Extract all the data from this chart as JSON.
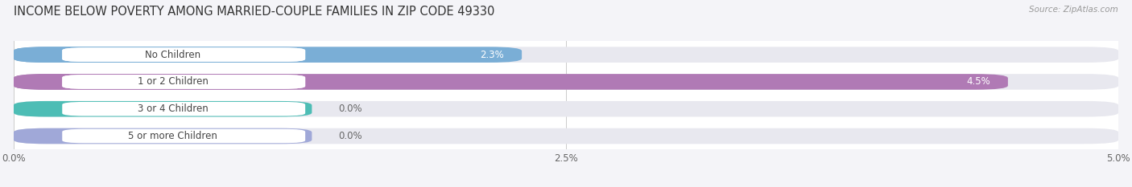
{
  "title": "INCOME BELOW POVERTY AMONG MARRIED-COUPLE FAMILIES IN ZIP CODE 49330",
  "source": "Source: ZipAtlas.com",
  "categories": [
    "No Children",
    "1 or 2 Children",
    "3 or 4 Children",
    "5 or more Children"
  ],
  "values": [
    2.3,
    4.5,
    0.0,
    0.0
  ],
  "bar_colors": [
    "#7aaed6",
    "#b07ab5",
    "#4dbdb5",
    "#a0a8d8"
  ],
  "bar_bg_color": "#e8e8ef",
  "xlim": [
    0,
    5.0
  ],
  "xtick_labels": [
    "0.0%",
    "2.5%",
    "5.0%"
  ],
  "xtick_vals": [
    0.0,
    2.5,
    5.0
  ],
  "title_fontsize": 10.5,
  "label_fontsize": 8.5,
  "value_fontsize": 8.5,
  "bar_height": 0.58,
  "bar_gap": 1.0,
  "background_color": "#f4f4f8",
  "plot_bg_color": "#ffffff",
  "value_label_color_inside": "#ffffff",
  "value_label_color_outside": "#666666",
  "label_text_color": "#444444",
  "grid_color": "#cccccc",
  "source_color": "#999999",
  "title_color": "#333333"
}
